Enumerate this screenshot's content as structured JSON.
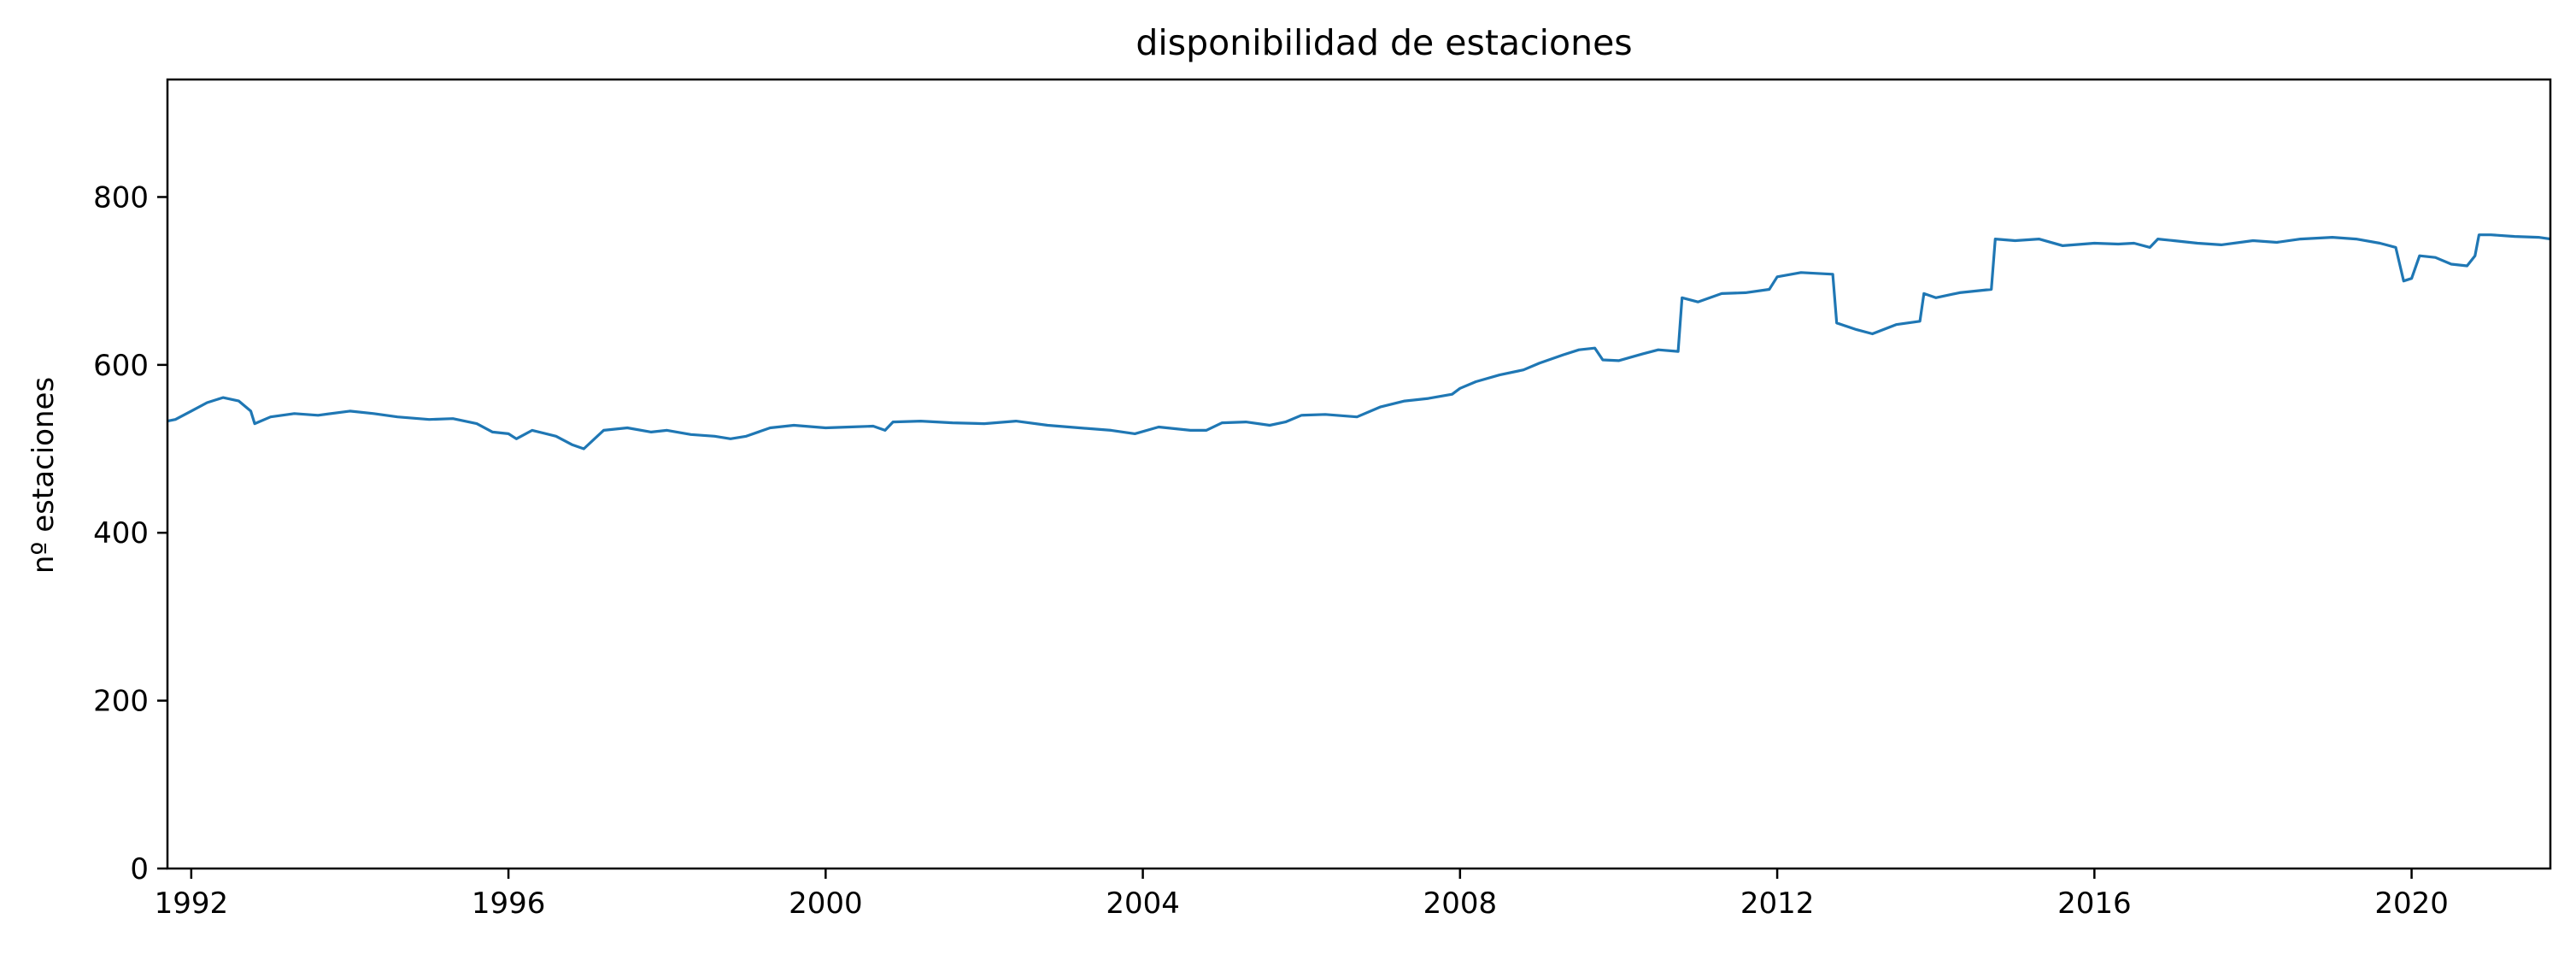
{
  "chart_data": {
    "type": "line",
    "title": "disponibilidad de estaciones",
    "xlabel": "",
    "ylabel": "nº estaciones",
    "xlim": [
      1991.7,
      2021.75
    ],
    "ylim": [
      0,
      940
    ],
    "x_ticks": [
      1992,
      1996,
      2000,
      2004,
      2008,
      2012,
      2016,
      2020
    ],
    "x_tick_labels": [
      "1992",
      "1996",
      "2000",
      "2004",
      "2008",
      "2012",
      "2016",
      "2020"
    ],
    "y_ticks": [
      0,
      200,
      400,
      600,
      800
    ],
    "y_tick_labels": [
      "0",
      "200",
      "400",
      "600",
      "800"
    ],
    "grid": false,
    "color": "#1f77b4",
    "series": [
      {
        "x": [
          1991.7,
          1991.8,
          1992.0,
          1992.2,
          1992.4,
          1992.6,
          1992.75,
          1992.8,
          1993.0,
          1993.3,
          1993.6,
          1994.0,
          1994.3,
          1994.6,
          1995.0,
          1995.3,
          1995.6,
          1995.8,
          1996.0,
          1996.1,
          1996.3,
          1996.6,
          1996.8,
          1996.95,
          1997.2,
          1997.5,
          1997.8,
          1998.0,
          1998.3,
          1998.6,
          1998.8,
          1999.0,
          1999.3,
          1999.6,
          2000.0,
          2000.3,
          2000.6,
          2000.75,
          2000.85,
          2001.2,
          2001.6,
          2002.0,
          2002.4,
          2002.8,
          2003.2,
          2003.6,
          2003.9,
          2004.2,
          2004.6,
          2004.8,
          2005.0,
          2005.3,
          2005.6,
          2005.8,
          2006.0,
          2006.3,
          2006.7,
          2007.0,
          2007.3,
          2007.6,
          2007.9,
          2008.0,
          2008.2,
          2008.5,
          2008.8,
          2009.0,
          2009.3,
          2009.5,
          2009.7,
          2009.8,
          2010.0,
          2010.3,
          2010.5,
          2010.75,
          2010.8,
          2011.0,
          2011.3,
          2011.6,
          2011.9,
          2012.0,
          2012.3,
          2012.7,
          2012.75,
          2013.0,
          2013.2,
          2013.5,
          2013.8,
          2013.85,
          2014.0,
          2014.3,
          2014.7,
          2014.75,
          2015.0,
          2015.3,
          2015.6,
          2016.0,
          2016.3,
          2016.5,
          2016.7,
          2016.8,
          2017.0,
          2017.3,
          2017.6,
          2018.0,
          2018.3,
          2018.6,
          2019.0,
          2019.3,
          2019.6,
          2019.8,
          2019.9,
          2020.0,
          2020.1,
          2020.3,
          2020.5,
          2020.7,
          2020.8,
          2020.85,
          2021.0,
          2021.3,
          2021.6,
          2021.75
        ],
        "y": [
          533,
          535,
          545,
          555,
          561,
          557,
          545,
          530,
          538,
          542,
          540,
          545,
          542,
          538,
          535,
          536,
          530,
          520,
          518,
          512,
          522,
          515,
          505,
          500,
          522,
          525,
          520,
          522,
          517,
          515,
          512,
          515,
          525,
          528,
          525,
          526,
          527,
          522,
          532,
          533,
          531,
          530,
          533,
          528,
          525,
          522,
          518,
          526,
          522,
          522,
          531,
          532,
          528,
          532,
          540,
          541,
          538,
          550,
          557,
          560,
          565,
          572,
          580,
          588,
          594,
          602,
          612,
          618,
          620,
          606,
          605,
          613,
          618,
          616,
          680,
          675,
          685,
          686,
          690,
          705,
          710,
          708,
          650,
          642,
          637,
          648,
          652,
          685,
          680,
          686,
          690,
          750,
          748,
          750,
          742,
          745,
          744,
          745,
          740,
          750,
          748,
          745,
          743,
          748,
          746,
          750,
          752,
          750,
          745,
          740,
          700,
          703,
          730,
          728,
          720,
          718,
          730,
          755,
          755,
          753,
          752,
          750
        ]
      }
    ]
  }
}
